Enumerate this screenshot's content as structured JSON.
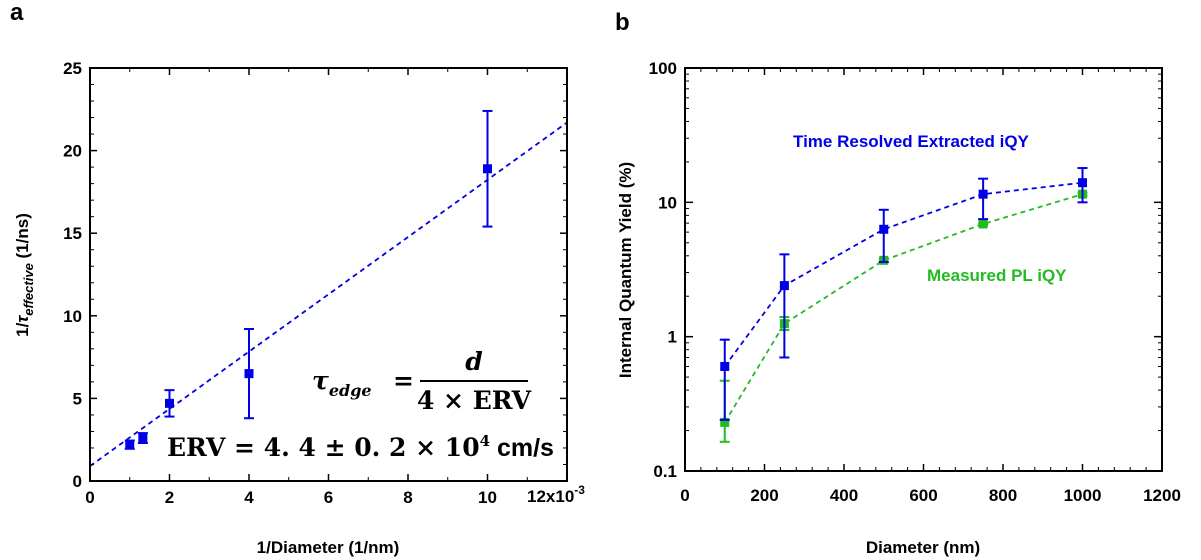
{
  "chart_data": [
    {
      "panel_label": "a",
      "type": "scatter",
      "xlabel": "1/Diameter (1/nm)",
      "ylabel": {
        "prefix": "1/",
        "symbol": "τ",
        "subscript": "effective",
        "unit": " (1/ns)"
      },
      "xlim": [
        0,
        0.012
      ],
      "ylim": [
        0,
        25
      ],
      "x_ticks": [
        0,
        2,
        4,
        6,
        8,
        10
      ],
      "x_multiplier": {
        "base": "12x10",
        "exp": "-3"
      },
      "y_ticks": [
        0,
        5,
        10,
        15,
        20,
        25
      ],
      "series": [
        {
          "x": [
            0.001,
            0.00133,
            0.002,
            0.004,
            0.01
          ],
          "y": [
            2.2,
            2.6,
            4.7,
            6.5,
            18.9
          ],
          "y_error": [
            0.25,
            0.3,
            0.8,
            2.7,
            3.5
          ],
          "color": "#0000e6"
        }
      ],
      "fit_line": {
        "x": [
          0,
          0.012
        ],
        "y": [
          0.9,
          21.7
        ],
        "style": "dashed",
        "color": "#0000e6"
      },
      "annotations": {
        "formula_lhs": "τ",
        "formula_lhs_sub": "edge",
        "formula_eq": "=",
        "formula_num": "d",
        "formula_den": "4 × ERV",
        "erv_text": "ERV = 4. 4 ± 0. 2  × 10",
        "erv_exp": "4",
        "erv_unit": " cm/s"
      }
    },
    {
      "panel_label": "b",
      "type": "line",
      "xlabel": "Diameter (nm)",
      "ylabel": "Internal Quantum Yield (%)",
      "xlim": [
        0,
        1200
      ],
      "ylim": [
        0.1,
        100
      ],
      "y_scale": "log",
      "x_ticks": [
        "0",
        "200",
        "400",
        "600",
        "800",
        "1000",
        "1200"
      ],
      "y_ticks": [
        "0.1",
        "1",
        "10",
        "100"
      ],
      "series": [
        {
          "name": "Time Resolved Extracted iQY",
          "x": [
            100,
            250,
            500,
            750,
            1000
          ],
          "y": [
            0.6,
            2.4,
            6.3,
            11.5,
            14
          ],
          "y_err_low": [
            0.24,
            0.7,
            3.6,
            7.5,
            10
          ],
          "y_err_high": [
            0.95,
            4.1,
            8.8,
            15,
            18
          ],
          "color": "#0000e6"
        },
        {
          "name": "Measured PL iQY",
          "x": [
            100,
            250,
            500,
            750,
            1000
          ],
          "y": [
            0.23,
            1.25,
            3.7,
            6.9,
            11.5
          ],
          "y_err_low": [
            0.165,
            1.12,
            3.6,
            6.8,
            11.2
          ],
          "y_err_high": [
            0.47,
            1.4,
            3.8,
            7.0,
            11.8
          ],
          "color": "#22bb22"
        }
      ]
    }
  ]
}
